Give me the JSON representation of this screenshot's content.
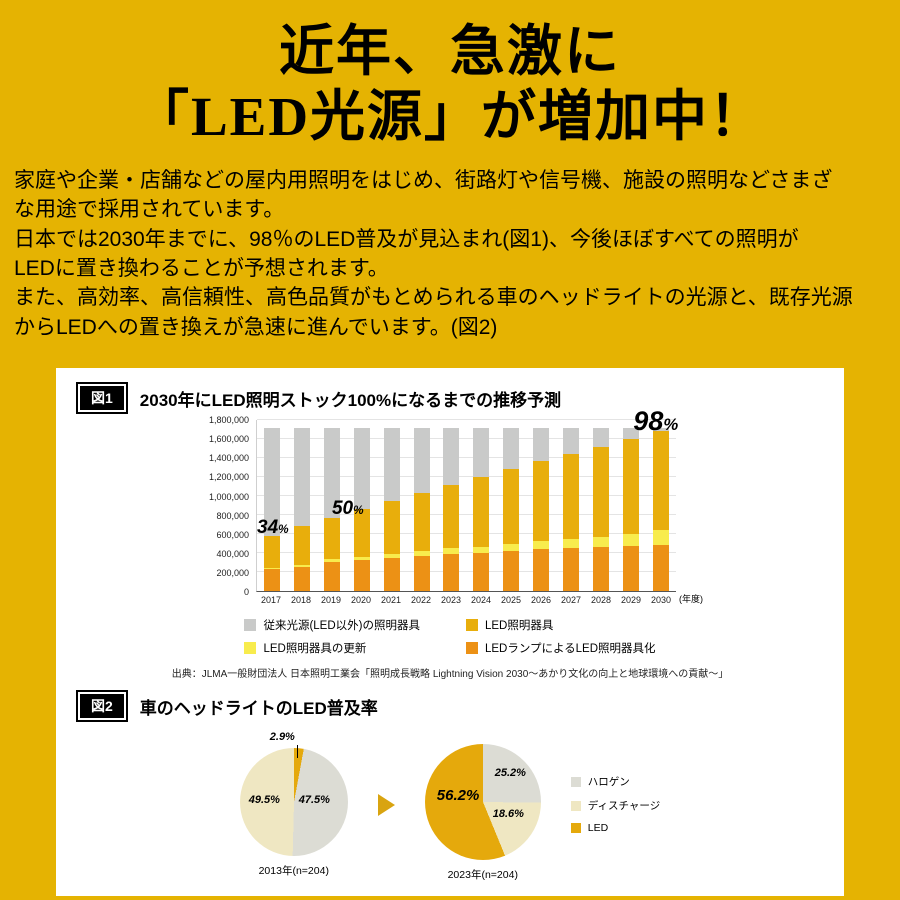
{
  "page": {
    "background": "#E5B302"
  },
  "header": {
    "line1": "近年、急激に",
    "line2": "「LED光源」が増加中！"
  },
  "intro": {
    "lines": [
      "家庭や企業・店舗などの屋内用照明をはじめ、街路灯や信号機、施設の照明などさまざ",
      "な用途で採用されています。",
      "日本では2030年までに、98％のLED普及が見込まれ(図1)、今後ほぼすべての照明が",
      "LEDに置き換わることが予想されます。",
      "また、高効率、高信頼性、高色品質がもとめられる車のヘッドライトの光源と、既存光源",
      "からLEDへの置き換えが急速に進んでいます。(図2)"
    ]
  },
  "fig1": {
    "tag": "図1",
    "title": "2030年にLED照明ストック100%になるまでの推移予測",
    "unit_label": "(年度)",
    "chart_data": {
      "type": "bar",
      "stacked": true,
      "title": "2030年にLED照明ストック100%になるまでの推移予測",
      "xlabel": "年度",
      "ylabel": "",
      "ylim": [
        0,
        1800000
      ],
      "yticks": [
        0,
        200000,
        400000,
        600000,
        800000,
        1000000,
        1200000,
        1400000,
        1600000,
        1800000
      ],
      "categories": [
        "2017",
        "2018",
        "2019",
        "2020",
        "2021",
        "2022",
        "2023",
        "2024",
        "2025",
        "2026",
        "2027",
        "2028",
        "2029",
        "2030"
      ],
      "series": [
        {
          "name": "LEDランプによるLED照明器具化",
          "color": "#EC9115",
          "values": [
            230000,
            250000,
            310000,
            330000,
            350000,
            370000,
            390000,
            400000,
            420000,
            440000,
            450000,
            460000,
            470000,
            490000
          ]
        },
        {
          "name": "LED照明器具の更新",
          "color": "#F8EC4D",
          "values": [
            15000,
            20000,
            25000,
            30000,
            40000,
            50000,
            60000,
            70000,
            80000,
            90000,
            100000,
            110000,
            130000,
            150000
          ]
        },
        {
          "name": "LED照明器具",
          "color": "#E8AE0C",
          "values": [
            340000,
            420000,
            440000,
            500000,
            560000,
            610000,
            670000,
            730000,
            790000,
            845000,
            895000,
            945000,
            1000000,
            1050000
          ]
        },
        {
          "name": "従来光源(LED以外)の照明器具",
          "color": "#C9CAC9",
          "values": [
            1135000,
            1030000,
            945000,
            860000,
            770000,
            690000,
            600000,
            520000,
            430000,
            345000,
            275000,
            205000,
            120000,
            30000
          ]
        }
      ],
      "annotations": [
        {
          "num": "34",
          "sym": "%",
          "index": 0,
          "y": 565000,
          "align": "left",
          "size": 19
        },
        {
          "num": "50",
          "sym": "%",
          "index": 3,
          "y": 770000,
          "align": "center",
          "size": 19
        },
        {
          "num": "98",
          "sym": "%",
          "index": 13,
          "y": 1640000,
          "align": "right",
          "size": 27
        }
      ],
      "legend_position": "bottom",
      "grid": true
    },
    "legend": [
      {
        "label": "従来光源(LED以外)の照明器具",
        "color": "#C9CAC9"
      },
      {
        "label": "LED照明器具",
        "color": "#E8AE0C"
      },
      {
        "label": "LED照明器具の更新",
        "color": "#F8EC4D"
      },
      {
        "label": "LEDランプによるLED照明器具化",
        "color": "#EC9115"
      }
    ],
    "source": "出典：JLMA一般財団法人 日本照明工業会「照明成長戦略 Lightning Vision 2030～あかり文化の向上と地球環境への貢献～」"
  },
  "fig2": {
    "tag": "図2",
    "title": "車のヘッドライトのLED普及率",
    "colors": {
      "ハロゲン": "#DCDCD4",
      "ディスチャージ": "#EFE7C2",
      "LED": "#E5A90C"
    },
    "chart_data": [
      {
        "type": "pie",
        "caption": "2013年(n=204)",
        "size": 108,
        "slices": [
          {
            "label": "LED",
            "value": 2.9
          },
          {
            "label": "ハロゲン",
            "value": 47.5
          },
          {
            "label": "ディスチャージ",
            "value": 49.5
          }
        ],
        "point_labels": [
          {
            "text": "2.9%",
            "x": 30,
            "y": -17,
            "big": false
          },
          {
            "text": "49.5%",
            "x": 9,
            "y": 46,
            "big": false
          },
          {
            "text": "47.5%",
            "x": 59,
            "y": 46,
            "big": false
          }
        ],
        "callout": {
          "x": 57,
          "y": -3,
          "h": 13
        }
      },
      {
        "type": "pie",
        "caption": "2023年(n=204)",
        "size": 116,
        "slices": [
          {
            "label": "ハロゲン",
            "value": 25.2
          },
          {
            "label": "ディスチャージ",
            "value": 18.6
          },
          {
            "label": "LED",
            "value": 56.2
          }
        ],
        "point_labels": [
          {
            "text": "25.2%",
            "x": 70,
            "y": 23,
            "big": false
          },
          {
            "text": "56.2%",
            "x": 12,
            "y": 43,
            "big": true
          },
          {
            "text": "18.6%",
            "x": 68,
            "y": 64,
            "big": false
          }
        ],
        "callout": null
      }
    ],
    "legend": [
      "ハロゲン",
      "ディスチャージ",
      "LED"
    ]
  }
}
